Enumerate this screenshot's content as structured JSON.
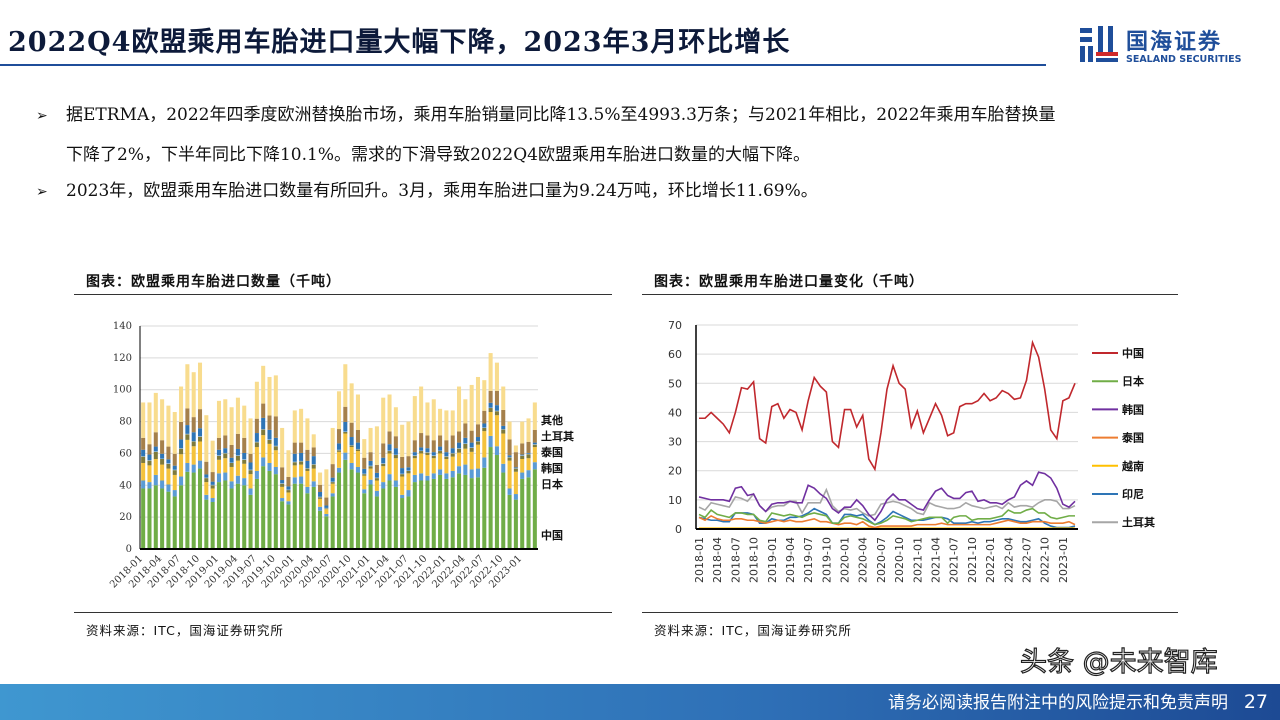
{
  "header": {
    "title": "2022Q4欧盟乘用车胎进口量大幅下降，2023年3月环比增长",
    "logo_cn": "国海证券",
    "logo_en": "SEALAND SECURITIES"
  },
  "bullets": [
    {
      "line1": "据ETRMA，2022年四季度欧洲替换胎市场，乘用车胎销量同比降13.5%至4993.3万条；与2021年相比，2022年乘用车胎替换量",
      "line2": "下降了2%，下半年同比下降10.1%。需求的下滑导致2022Q4欧盟乘用车胎进口数量的大幅下降。"
    },
    {
      "line1": "2023年，欧盟乘用车胎进口数量有所回升。3月，乘用车胎进口量为9.24万吨，环比增长11.69%。"
    }
  ],
  "bullet_icon": "arrow-right-icon",
  "footer": {
    "note": "请务必阅读报告附注中的风险提示和免责声明",
    "page": "27",
    "watermark": "头条 @未来智库"
  },
  "chart_data": [
    {
      "type": "bar",
      "stacked": true,
      "title": "图表：欧盟乘用车胎进口数量（千吨）",
      "source": "资料来源：ITC，国海证券研究所",
      "ylim": [
        0,
        140
      ],
      "yticks": [
        0,
        20,
        40,
        60,
        80,
        100,
        120,
        140
      ],
      "grid": true,
      "legend": "right",
      "legend_labels": [
        "其他",
        "土耳其",
        "泰国",
        "韩国",
        "日本",
        "中国"
      ],
      "x_tick_labels": [
        "2018-01",
        "2018-04",
        "2018-07",
        "2018-10",
        "2019-01",
        "2019-04",
        "2019-07",
        "2019-10",
        "2020-01",
        "2020-04",
        "2020-07",
        "2020-10",
        "2021-01",
        "2021-04",
        "2021-07",
        "2021-10",
        "2022-01",
        "2022-04",
        "2022-07",
        "2022-10",
        "2023-01"
      ],
      "stack_colors": [
        "#70ad47",
        "#5b9bd5",
        "#f4c23d",
        "#7f7a3a",
        "#9dc3e6",
        "#2e75b6",
        "#a5804b",
        "#f8dc8e"
      ],
      "totals": [
        92,
        92,
        98,
        94,
        90,
        86,
        102,
        116,
        111,
        117,
        84,
        68,
        93,
        94,
        89,
        95,
        90,
        82,
        105,
        115,
        108,
        109,
        76,
        62,
        87,
        88,
        82,
        72,
        48,
        50,
        76,
        99,
        116,
        104,
        97,
        69,
        76,
        77,
        95,
        97,
        89,
        78,
        80,
        96,
        102,
        92,
        94,
        88,
        87,
        87,
        102,
        94,
        103,
        108,
        106,
        123,
        117,
        102,
        80,
        65,
        80,
        82,
        92
      ]
    },
    {
      "type": "line",
      "title": "图表：欧盟乘用车胎进口量变化（千吨）",
      "source": "资料来源：ITC，国海证券研究所",
      "ylim": [
        0,
        70
      ],
      "yticks": [
        0,
        10,
        20,
        30,
        40,
        50,
        60,
        70
      ],
      "grid": true,
      "legend": "right",
      "start": "2018-01",
      "end": "2023-03",
      "x_tick_labels": [
        "2018-01",
        "2018-04",
        "2018-07",
        "2018-10",
        "2019-01",
        "2019-04",
        "2019-07",
        "2019-10",
        "2020-01",
        "2020-04",
        "2020-07",
        "2020-10",
        "2021-01",
        "2021-04",
        "2021-07",
        "2021-10",
        "2022-01",
        "2022-04",
        "2022-07",
        "2022-10",
        "2023-01"
      ],
      "series": [
        {
          "name": "中国",
          "color": "#c0282d",
          "values": [
            38,
            38,
            40,
            38,
            36,
            33,
            40,
            48.5,
            48,
            50.5,
            31,
            29.5,
            42,
            43,
            38,
            41,
            40,
            34,
            44,
            52,
            49,
            47,
            30,
            28,
            41,
            41,
            35,
            39,
            24,
            20.5,
            33,
            48,
            56,
            50,
            48,
            35,
            40.5,
            33,
            38,
            43,
            39,
            32,
            33,
            42,
            43,
            43,
            44,
            46.5,
            44,
            45,
            47.5,
            46.5,
            44.5,
            45,
            51,
            64,
            59,
            48,
            34,
            31,
            44,
            45,
            50
          ]
        },
        {
          "name": "日本",
          "color": "#70ad47",
          "values": [
            5,
            4,
            6.5,
            5,
            4.5,
            4,
            5.5,
            5.5,
            5,
            5,
            3,
            2.5,
            5.5,
            5,
            4.5,
            5,
            4.5,
            4,
            5,
            5.5,
            5,
            4.5,
            2,
            2,
            4,
            4.5,
            4,
            3.5,
            2.5,
            1.5,
            2,
            3,
            4.5,
            4,
            3.5,
            2.5,
            3,
            3.5,
            4,
            4,
            4,
            2,
            4,
            4.5,
            4.5,
            3,
            3.5,
            3.5,
            3.5,
            4,
            4.5,
            6.5,
            5.5,
            5.5,
            6.5,
            7,
            5.5,
            5.5,
            4,
            3.5,
            4,
            4.5,
            4.5
          ]
        },
        {
          "name": "韩国",
          "color": "#7030a0",
          "values": [
            11,
            10.5,
            10,
            10,
            10,
            9.5,
            14,
            14.5,
            11.5,
            12,
            8,
            6,
            8.5,
            9,
            9,
            9.5,
            9,
            9,
            15,
            14,
            12,
            10.5,
            7,
            5.5,
            7.5,
            7.5,
            10,
            8,
            5,
            3,
            6,
            10,
            12,
            10,
            10,
            8.5,
            7,
            6.5,
            10,
            13,
            14,
            11.5,
            10.5,
            10.5,
            12.5,
            13,
            9.5,
            10,
            9,
            9,
            8.5,
            10,
            11,
            15,
            16.5,
            15,
            19.5,
            19,
            17.5,
            14,
            8.5,
            7.5,
            9.5
          ]
        },
        {
          "name": "泰国",
          "color": "#ed7d31",
          "values": [
            4,
            3,
            4.5,
            3.5,
            3,
            3,
            3.5,
            3.5,
            3,
            3,
            2.5,
            2,
            2.5,
            3,
            2.5,
            3,
            2.5,
            2.5,
            3,
            3.5,
            2.5,
            2.5,
            2,
            1.5,
            2,
            2,
            1.5,
            2.5,
            1,
            0.5,
            1,
            1,
            1,
            1,
            1,
            1,
            1.5,
            1.5,
            1.5,
            1.5,
            2,
            1.5,
            1.5,
            1.5,
            1.5,
            1.5,
            1.5,
            1.5,
            1.5,
            2,
            2.5,
            3,
            2.5,
            2,
            2,
            2.5,
            2.5,
            2.5,
            2,
            2,
            2,
            2.5,
            1.5
          ]
        },
        {
          "name": "越南",
          "color": "#ffc000",
          "values": [
            0.3,
            0.3,
            0.3,
            0.3,
            0.3,
            0.3,
            0.3,
            0.3,
            0.3,
            0.3,
            0.3,
            0.3,
            0.3,
            0.3,
            0.3,
            0.3,
            0.3,
            0.3,
            0.3,
            0.3,
            0.3,
            0.3,
            0.3,
            0.3,
            0.3,
            0.3,
            0.3,
            0.3,
            0.3,
            0.3,
            0.3,
            0.3,
            0.3,
            0.3,
            0.3,
            0.3,
            0.3,
            0.3,
            0.3,
            0.3,
            0.3,
            0.3,
            0.3,
            0.3,
            0.3,
            0.3,
            0.3,
            0.3,
            0.3,
            0.3,
            0.3,
            0.3,
            0.3,
            0.3,
            0.3,
            0.3,
            0.3,
            0.3,
            0.3,
            0.3,
            0.3,
            0.3,
            0.3
          ]
        },
        {
          "name": "印尼",
          "color": "#2e75b6",
          "values": [
            4,
            3.5,
            3,
            3,
            2.5,
            2.5,
            5.5,
            5.5,
            5.5,
            5,
            2,
            2,
            3.5,
            3,
            3,
            4,
            4,
            4.5,
            5.5,
            7,
            6,
            5,
            2,
            2,
            5,
            5,
            4.5,
            5,
            3,
            1.5,
            2.5,
            4,
            6,
            5,
            4,
            3,
            3,
            3,
            3.5,
            4,
            4,
            3.5,
            2,
            2,
            2,
            2.5,
            2,
            2.5,
            2.5,
            3,
            3.5,
            3.5,
            3,
            2.5,
            2.5,
            3,
            3.5,
            2,
            1,
            0.5,
            0.5,
            0.5,
            1
          ]
        },
        {
          "name": "土耳其",
          "color": "#a6a6a6",
          "values": [
            7.5,
            6.5,
            9,
            8.5,
            8,
            7.5,
            11,
            10.5,
            9.5,
            12,
            8,
            6,
            7.5,
            8,
            8,
            9.5,
            9.5,
            5.5,
            9,
            9,
            9,
            13.5,
            8,
            6,
            7,
            6.5,
            7,
            5.5,
            4.5,
            5,
            8.5,
            9,
            9.5,
            9,
            8,
            7,
            5.5,
            5,
            9,
            8,
            7.5,
            7,
            7,
            7.5,
            9,
            8,
            7.5,
            7,
            7.5,
            8,
            7,
            9,
            7.5,
            8,
            8,
            7.5,
            9,
            10,
            10,
            9.5,
            7,
            7,
            8
          ]
        }
      ]
    }
  ]
}
